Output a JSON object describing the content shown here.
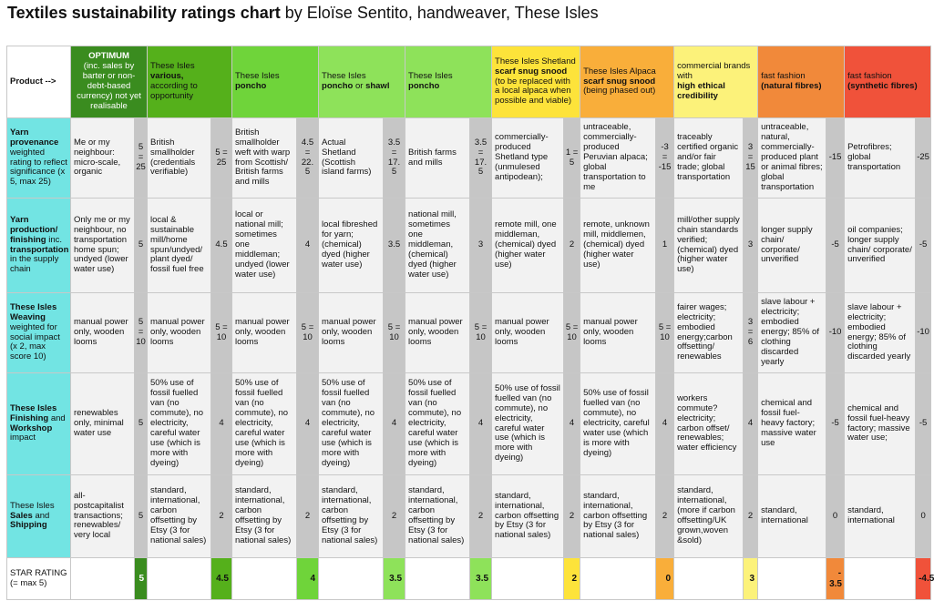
{
  "title": {
    "main": "Textiles sustainability ratings chart",
    "byline": "by Eloïse Sentito, handweaver, These Isles"
  },
  "header": {
    "product_label": "Product -->",
    "columns": [
      {
        "id": "optimum",
        "line1": "OPTIMUM",
        "line2": "(inc. sales by barter or non-debt-based currency) not yet realisable",
        "bold1": true,
        "bg": "#3a8c1f",
        "fg": "#ffffff",
        "scorebg": "#3a8c1f",
        "starbg": "#3a8c1f"
      },
      {
        "id": "various",
        "line1": "These Isles",
        "line2": "various,",
        "line3": "according to opportunity",
        "bg": "#55b01b",
        "fg": "#111111",
        "scorebg": "#c6c6c6",
        "starbg": "#55b01b"
      },
      {
        "id": "poncho1",
        "line1": "These Isles",
        "line2": "poncho",
        "bg": "#6fd43a",
        "fg": "#111111",
        "scorebg": "#c6c6c6",
        "starbg": "#6fd43a"
      },
      {
        "id": "poncho_shawl",
        "line1": "These Isles",
        "line2": "poncho",
        "line2b": " or ",
        "line2c": "shawl",
        "bg": "#8ee25a",
        "fg": "#111111",
        "scorebg": "#c6c6c6",
        "starbg": "#8ee25a"
      },
      {
        "id": "poncho2",
        "line1": "These Isles",
        "line2": "poncho",
        "bg": "#8ee25a",
        "fg": "#111111",
        "scorebg": "#c6c6c6",
        "starbg": "#8ee25a"
      },
      {
        "id": "shetland",
        "line1": "These Isles Shetland",
        "line2": "scarf snug snood",
        "line3": "(to be replaced with a local alpaca when possible and viable)",
        "bg": "#fde33a",
        "fg": "#111111",
        "scorebg": "#c6c6c6",
        "starbg": "#fde33a"
      },
      {
        "id": "alpaca",
        "line1": "These Isles Alpaca",
        "line2": "scarf snug snood",
        "line3": "(being phased out)",
        "bg": "#f9ae3a",
        "fg": "#111111",
        "scorebg": "#c6c6c6",
        "starbg": "#f9ae3a"
      },
      {
        "id": "commercial",
        "line1": "commercial brands with",
        "line2": "high ethical credibility",
        "bg": "#fcf27a",
        "fg": "#111111",
        "scorebg": "#c6c6c6",
        "starbg": "#fcf27a"
      },
      {
        "id": "ff_natural",
        "line1": "fast fashion",
        "line2": "(natural fibres)",
        "bg": "#f1893a",
        "fg": "#111111",
        "scorebg": "#c6c6c6",
        "starbg": "#f1893a"
      },
      {
        "id": "ff_synthetic",
        "line1": "fast fashion",
        "line2": "(synthetic fibres)",
        "bg": "#f0523a",
        "fg": "#111111",
        "scorebg": "#c6c6c6",
        "starbg": "#f0523a"
      }
    ]
  },
  "rows": [
    {
      "id": "yarn_provenance",
      "label_bold": "Yarn provenance",
      "label_rest": " weighted rating to reflect significance (x 5, max 25)",
      "cells": [
        {
          "text": "Me or my neighbour: micro-scale, organic",
          "score": "5\n=\n25"
        },
        {
          "text": "British smallholder (credentials verifiable)",
          "score": "5 =\n25"
        },
        {
          "text": "British smallholder weft with warp from Scottish/ British farms and mills",
          "score": "4.5\n=\n22.\n5"
        },
        {
          "text": "Actual Shetland (Scottish island farms)",
          "score": "3.5\n=\n17.\n5"
        },
        {
          "text": "British farms and mills",
          "score": "3.5\n=\n17.\n5"
        },
        {
          "text": "commercially-produced Shetland type (unmulesed antipodean);",
          "score": "1 =\n5"
        },
        {
          "text": "untraceable, commercially-produced Peruvian alpaca; global transportation to me",
          "score": "-3\n=\n-15"
        },
        {
          "text": "traceably certified organic and/or fair trade; global transportation",
          "score": "3 =\n15"
        },
        {
          "text": "untraceable, natural, commercially-produced plant or animal fibres; global transportation",
          "score": "-15"
        },
        {
          "text": "Petrofibres; global transportation",
          "score": "-25"
        }
      ]
    },
    {
      "id": "yarn_production",
      "label_bold": "Yarn production/ finishing",
      "label_rest": " inc. ",
      "label_bold2": "transportation",
      "label_rest2": " in the supply chain",
      "cells": [
        {
          "text": "Only me or my neighbour, no transportation home spun; undyed (lower water use)",
          "score": "5"
        },
        {
          "text": "local & sustainable mill/home spun/undyed/ plant dyed/ fossil fuel free",
          "score": "4.5"
        },
        {
          "text": "local or national mill; sometimes one middleman; undyed (lower water use)",
          "score": "4"
        },
        {
          "text": "local fibreshed for yarn; (chemical) dyed (higher water use)",
          "score": "3.5"
        },
        {
          "text": "national mill, sometimes one middleman, (chemical) dyed (higher water use)",
          "score": "3"
        },
        {
          "text": "remote mill, one middleman, (chemical) dyed (higher water use)",
          "score": "2"
        },
        {
          "text": "remote, unknown mill, middlemen, (chemical) dyed (higher water use)",
          "score": "1"
        },
        {
          "text": "mill/other supply chain standards verified; (chemical) dyed (higher water use)",
          "score": "3"
        },
        {
          "text": "longer supply chain/ corporate/ unverified",
          "score": "-5"
        },
        {
          "text": "oil companies; longer supply chain/ corporate/ unverified",
          "score": "-5"
        }
      ]
    },
    {
      "id": "weaving",
      "label_bold": "These Isles Weaving",
      "label_rest": " weighted for social impact (x 2, max score 10)",
      "cells": [
        {
          "text": "manual power only, wooden looms",
          "score": "5\n=\n10"
        },
        {
          "text": "manual power only, wooden looms",
          "score": "5 =\n10"
        },
        {
          "text": "manual power only, wooden looms",
          "score": "5 =\n10"
        },
        {
          "text": "manual power only, wooden looms",
          "score": "5 =\n10"
        },
        {
          "text": "manual power only, wooden looms",
          "score": "5 =\n10"
        },
        {
          "text": "manual power only, wooden looms",
          "score": "5 =\n10"
        },
        {
          "text": "manual power only, wooden looms",
          "score": "5 =\n10"
        },
        {
          "text": "fairer wages; electricity; embodied energy;carbon offsetting/ renewables",
          "score": "3 =\n6"
        },
        {
          "text": "slave labour + electricity; embodied energy; 85% of clothing discarded yearly",
          "score": "-10"
        },
        {
          "text": "slave labour + electricity; embodied energy; 85% of clothing discarded yearly",
          "score": "-10"
        }
      ]
    },
    {
      "id": "finishing",
      "label_bold": "These Isles Finishing",
      "label_rest": " and ",
      "label_bold2": "Workshop",
      "label_rest2": " impact",
      "cells": [
        {
          "text": "renewables only, minimal water use",
          "score": "5"
        },
        {
          "text": "50% use of fossil fuelled van (no commute), no electricity, careful water use (which is more with dyeing)",
          "score": "4"
        },
        {
          "text": "50% use of fossil fuelled van (no commute), no electricity, careful water use (which is more with dyeing)",
          "score": "4"
        },
        {
          "text": "50% use of fossil fuelled van (no commute), no electricity, careful water use (which is more with dyeing)",
          "score": "4"
        },
        {
          "text": "50% use of fossil fuelled van (no commute), no electricity, careful water use (which is more with dyeing)",
          "score": "4"
        },
        {
          "text": "50% use of fossil fuelled van (no commute), no electricity, careful water use (which is more with dyeing)",
          "score": "4"
        },
        {
          "text": "50% use of fossil fuelled van (no commute), no electricity, careful water use (which is more with dyeing)",
          "score": "4"
        },
        {
          "text": "workers commute? electricity; carbon offset/ renewables; water efficiency",
          "score": "4"
        },
        {
          "text": "chemical and fossil fuel-heavy factory; massive water use",
          "score": "-5"
        },
        {
          "text": "chemical and fossil fuel-heavy factory; massive water use;",
          "score": "-5"
        }
      ]
    },
    {
      "id": "sales",
      "label_pre": "These Isles ",
      "label_bold": "Sales",
      "label_rest": " and ",
      "label_bold2": "Shipping",
      "label_rest2": "",
      "cells": [
        {
          "text": "all-postcapitalist transactions; renewables/ very local",
          "score": "5"
        },
        {
          "text": "standard, international, carbon offsetting by Etsy (3 for national sales)",
          "score": "2"
        },
        {
          "text": "standard, international, carbon offsetting by Etsy (3 for national sales)",
          "score": "2"
        },
        {
          "text": "standard, international, carbon offsetting by Etsy (3 for national sales)",
          "score": "2"
        },
        {
          "text": "standard, international, carbon offsetting by Etsy (3 for national sales)",
          "score": "2"
        },
        {
          "text": "standard, international, carbon offsetting by Etsy (3 for national sales)",
          "score": "2"
        },
        {
          "text": "standard, international, carbon offsetting by Etsy (3 for national sales)",
          "score": "2"
        },
        {
          "text": "standard, international, (more if carbon offsetting/UK grown,woven &sold)",
          "score": "2"
        },
        {
          "text": "standard, international",
          "score": "0"
        },
        {
          "text": "standard, international",
          "score": "0"
        }
      ]
    }
  ],
  "star_rating": {
    "label": "STAR RATING\n(= max 5)",
    "values": [
      "5",
      "4.5",
      "4",
      "3.5",
      "3.5",
      "2",
      "0",
      "3",
      "-\n3.5",
      "-4.5"
    ]
  }
}
